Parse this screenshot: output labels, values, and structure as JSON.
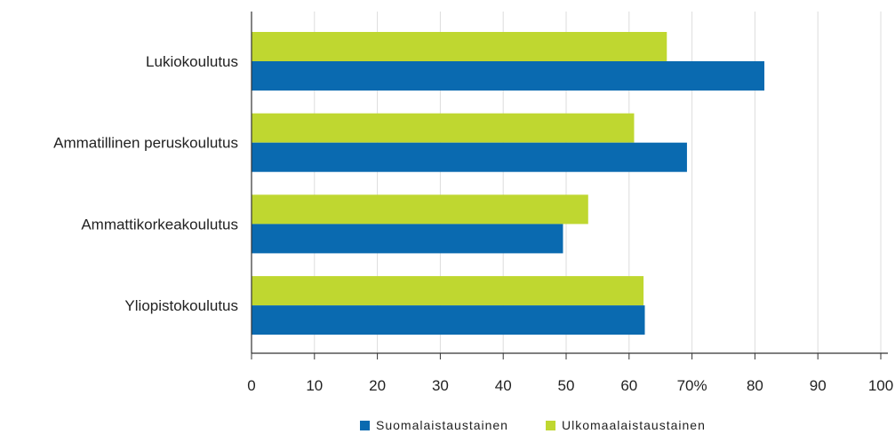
{
  "chart_data": {
    "type": "bar",
    "orientation": "horizontal",
    "title": "",
    "xlabel": "",
    "ylabel": "",
    "categories": [
      "Lukiokoulutus",
      "Ammatillinen peruskoulutus",
      "Ammattikorkeakoulutus",
      "Yliopistokoulutus"
    ],
    "series": [
      {
        "name": "Suomalaistaustainen",
        "color": "#0a6ab0",
        "values": [
          81.5,
          69.2,
          49.5,
          62.5
        ]
      },
      {
        "name": "Ulkomaalaistaustainen",
        "color": "#bfd730",
        "values": [
          66.0,
          60.8,
          53.5,
          62.3
        ]
      }
    ],
    "xlim": [
      0,
      100
    ],
    "ticks": [
      {
        "value": 0,
        "label": "0"
      },
      {
        "value": 10,
        "label": "10"
      },
      {
        "value": 20,
        "label": "20"
      },
      {
        "value": 30,
        "label": "30"
      },
      {
        "value": 40,
        "label": "40"
      },
      {
        "value": 50,
        "label": "50"
      },
      {
        "value": 60,
        "label": "60"
      },
      {
        "value": 70,
        "label": "70%"
      },
      {
        "value": 80,
        "label": "80"
      },
      {
        "value": 90,
        "label": "90"
      },
      {
        "value": 100,
        "label": "100"
      }
    ],
    "grid": true,
    "legend_position": "bottom"
  }
}
